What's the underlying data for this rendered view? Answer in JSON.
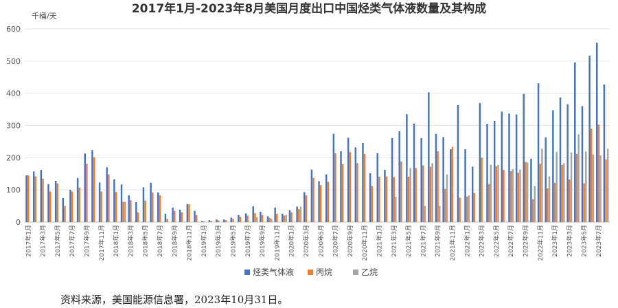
{
  "chart_data": {
    "type": "bar",
    "title": "2017年1月-2023年8月美国月度出口中国烃类气体液数量及其构成",
    "unit_label": "千桶/天",
    "ylim": [
      0,
      600
    ],
    "yticks": [
      0,
      100,
      200,
      300,
      400,
      500,
      600
    ],
    "grid": true,
    "legend_position": "bottom",
    "categories": [
      "2017年1月",
      "2017年2月",
      "2017年3月",
      "2017年4月",
      "2017年5月",
      "2017年6月",
      "2017年7月",
      "2017年8月",
      "2017年9月",
      "2017年10月",
      "2017年11月",
      "2017年12月",
      "2018年1月",
      "2018年2月",
      "2018年3月",
      "2018年4月",
      "2018年5月",
      "2018年6月",
      "2018年7月",
      "2018年8月",
      "2018年9月",
      "2018年10月",
      "2018年11月",
      "2018年12月",
      "2019年1月",
      "2019年2月",
      "2019年3月",
      "2019年4月",
      "2019年5月",
      "2019年6月",
      "2019年7月",
      "2019年8月",
      "2019年9月",
      "2019年10月",
      "2019年11月",
      "2019年12月",
      "2020年1月",
      "2020年2月",
      "2020年3月",
      "2020年4月",
      "2020年5月",
      "2020年6月",
      "2020年7月",
      "2020年8月",
      "2020年9月",
      "2020年10月",
      "2020年11月",
      "2020年12月",
      "2021年1月",
      "2021年2月",
      "2021年3月",
      "2021年4月",
      "2021年5月",
      "2021年6月",
      "2021年7月",
      "2021年8月",
      "2021年9月",
      "2021年10月",
      "2021年11月",
      "2021年12月",
      "2022年1月",
      "2022年2月",
      "2022年3月",
      "2022年4月",
      "2022年5月",
      "2022年6月",
      "2022年7月",
      "2022年8月",
      "2022年9月",
      "2022年10月",
      "2022年11月",
      "2022年12月",
      "2023年1月",
      "2023年2月",
      "2023年3月",
      "2023年4月",
      "2023年5月",
      "2023年6月",
      "2023年7月",
      "2023年8月"
    ],
    "x_tick_labels": [
      "2017年1月",
      "2017年3月",
      "2017年5月",
      "2017年7月",
      "2017年9月",
      "2017年11月",
      "2018年1月",
      "2018年3月",
      "2018年5月",
      "2018年7月",
      "2018年9月",
      "2018年11月",
      "2019年1月",
      "2019年3月",
      "2019年5月",
      "2019年7月",
      "2019年9月",
      "2019年11月",
      "2020年1月",
      "2020年3月",
      "2020年5月",
      "2020年7月",
      "2020年9月",
      "2020年11月",
      "2021年1月",
      "2021年3月",
      "2021年5月",
      "2021年7月",
      "2021年9月",
      "2021年11月",
      "2022年1月",
      "2022年3月",
      "2022年5月",
      "2022年7月",
      "2022年9月",
      "2022年11月",
      "2023年1月",
      "2023年3月",
      "2023年5月",
      "2023年7月"
    ],
    "series": [
      {
        "name": "烃类气体液",
        "color": "#4472C4",
        "values": [
          145,
          157,
          162,
          118,
          128,
          75,
          100,
          137,
          213,
          224,
          123,
          170,
          133,
          117,
          83,
          62,
          108,
          122,
          92,
          26,
          45,
          38,
          56,
          35,
          3,
          6,
          8,
          8,
          14,
          22,
          27,
          49,
          32,
          18,
          45,
          26,
          37,
          48,
          93,
          163,
          127,
          148,
          274,
          220,
          262,
          232,
          246,
          152,
          214,
          162,
          261,
          282,
          335,
          306,
          261,
          403,
          274,
          264,
          226,
          363,
          226,
          172,
          370,
          305,
          314,
          343,
          337,
          334,
          398,
          197,
          431,
          263,
          347,
          387,
          366,
          496,
          360,
          517,
          557,
          427
        ]
      },
      {
        "name": "丙烷",
        "color": "#ED7D31",
        "values": [
          145,
          142,
          135,
          95,
          120,
          50,
          95,
          107,
          181,
          201,
          95,
          148,
          94,
          63,
          68,
          30,
          67,
          92,
          83,
          10,
          35,
          30,
          55,
          22,
          2,
          4,
          5,
          6,
          10,
          16,
          20,
          28,
          22,
          13,
          26,
          20,
          30,
          40,
          83,
          137,
          115,
          125,
          214,
          180,
          217,
          183,
          212,
          112,
          141,
          142,
          140,
          188,
          141,
          168,
          176,
          172,
          220,
          103,
          234,
          76,
          79,
          90,
          200,
          118,
          173,
          162,
          158,
          153,
          187,
          71,
          181,
          105,
          122,
          178,
          132,
          212,
          120,
          290,
          303,
          195
        ]
      },
      {
        "name": "乙烷",
        "color": "#A5A5A5",
        "values": [
          0,
          0,
          0,
          0,
          0,
          0,
          0,
          0,
          0,
          0,
          0,
          0,
          0,
          63,
          0,
          0,
          0,
          0,
          0,
          0,
          0,
          0,
          0,
          0,
          0,
          0,
          0,
          0,
          0,
          0,
          0,
          15,
          0,
          10,
          0,
          22,
          0,
          48,
          0,
          0,
          0,
          0,
          0,
          0,
          0,
          0,
          0,
          0,
          0,
          0,
          78,
          0,
          168,
          0,
          50,
          183,
          50,
          148,
          0,
          0,
          83,
          0,
          0,
          178,
          178,
          0,
          165,
          163,
          185,
          112,
          228,
          142,
          218,
          183,
          216,
          273,
          219,
          210,
          207,
          228
        ]
      }
    ]
  },
  "source_note": "资料来源，美国能源信息署，2023年10月31日。"
}
